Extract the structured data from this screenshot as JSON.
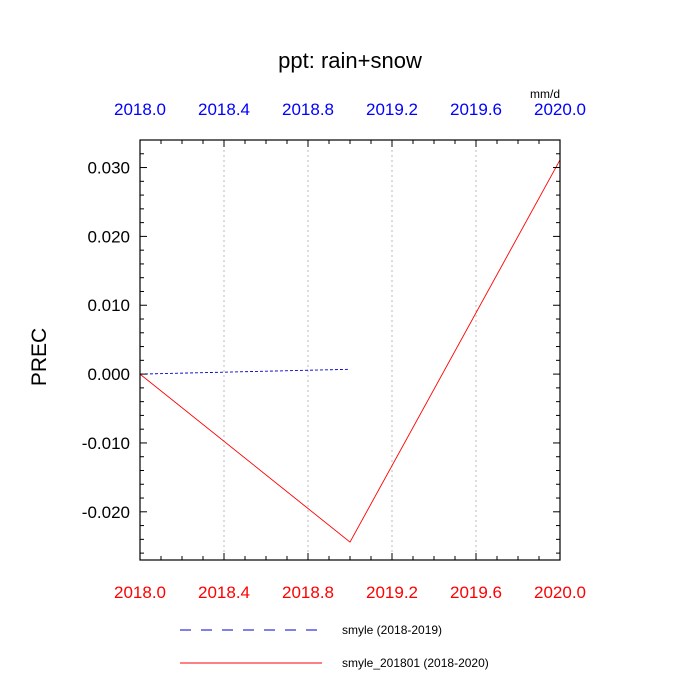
{
  "chart_data": {
    "type": "line",
    "title": "ppt: rain+snow",
    "units": "mm/d",
    "ylabel": "PREC",
    "xlim": [
      2018.0,
      2020.0
    ],
    "ylim": [
      -0.027,
      0.034
    ],
    "x_ticks": [
      2018.0,
      2018.4,
      2018.8,
      2019.2,
      2019.6,
      2020.0
    ],
    "x_tick_labels": [
      "2018.0",
      "2018.4",
      "2018.8",
      "2019.2",
      "2019.6",
      "2020.0"
    ],
    "y_ticks": [
      -0.02,
      -0.01,
      0.0,
      0.01,
      0.02,
      0.03
    ],
    "y_tick_labels": [
      "-0.020",
      "-0.010",
      "0.000",
      "0.010",
      "0.020",
      "0.030"
    ],
    "grid_x": true,
    "grid_y": false,
    "legend_position": "bottom-center",
    "bottom_axis_color": "#ff0000",
    "top_axis_color": "#0000ff",
    "series": [
      {
        "name": "smyle (2018-2019)",
        "color": "#0000cc",
        "dash": "dashed",
        "x": [
          2018.0,
          2019.0
        ],
        "values": [
          0.0,
          0.0007
        ]
      },
      {
        "name": "smyle_201801 (2018-2020)",
        "color": "#ff0000",
        "dash": "solid",
        "x": [
          2018.0,
          2019.0,
          2020.0
        ],
        "values": [
          0.0,
          -0.0244,
          0.0311
        ]
      }
    ]
  }
}
